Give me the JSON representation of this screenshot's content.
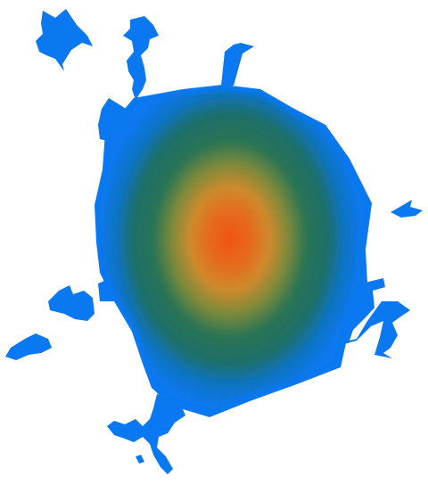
{
  "image": {
    "background_color": "#ffffff",
    "colors": {
      "outer_blue": "#0a78f0",
      "mid_green": "#1f6e5a",
      "warm_ring": "#d08a2a",
      "core_orange": "#f05414"
    }
  }
}
